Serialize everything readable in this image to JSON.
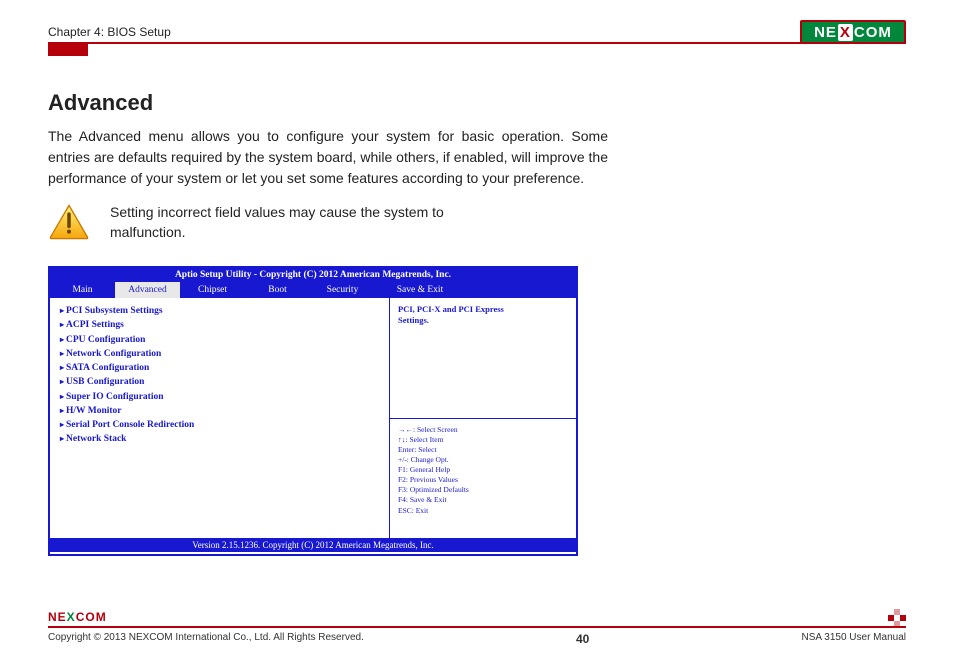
{
  "header": {
    "chapter": "Chapter 4: BIOS Setup",
    "logo_pre": "NE",
    "logo_x": "X",
    "logo_post": "COM"
  },
  "main": {
    "title": "Advanced",
    "body": "The Advanced menu allows you to configure your system for basic operation. Some entries are defaults required by the system board, while others, if enabled, will improve the performance of your system or let you set some features according to your preference.",
    "warning": "Setting incorrect field values may cause the system to malfunction."
  },
  "bios": {
    "top": "Aptio Setup Utility - Copyright (C) 2012 American Megatrends, Inc.",
    "tabs": [
      "Main",
      "Advanced",
      "Chipset",
      "Boot",
      "Security",
      "Save & Exit"
    ],
    "active_tab": 1,
    "items": [
      "PCI Subsystem Settings",
      "ACPI Settings",
      "CPU Configuration",
      "Network Configuration",
      "SATA Configuration",
      "USB Configuration",
      "Super IO Configuration",
      "H/W Monitor",
      "Serial Port Console Redirection",
      "Network Stack"
    ],
    "help_top_l1": "PCI, PCI-X and PCI Express",
    "help_top_l2": "Settings.",
    "help_bot": [
      "→←: Select Screen",
      "↑↓: Select Item",
      "Enter: Select",
      "+/-: Change Opt.",
      "F1: General Help",
      "F2: Previous Values",
      "F3: Optimized Defaults",
      "F4: Save & Exit",
      "ESC: Exit"
    ],
    "bottom": "Version 2.15.1236. Copyright (C) 2012 American Megatrends, Inc."
  },
  "footer": {
    "logo_pre": "NE",
    "logo_x": "X",
    "logo_post": "COM",
    "copyright": "Copyright © 2013 NEXCOM International Co., Ltd. All Rights Reserved.",
    "page": "40",
    "manual": "NSA 3150 User Manual"
  },
  "colors": {
    "brand_red": "#b5000c",
    "brand_green": "#00873c",
    "bios_blue": "#1818d0"
  }
}
